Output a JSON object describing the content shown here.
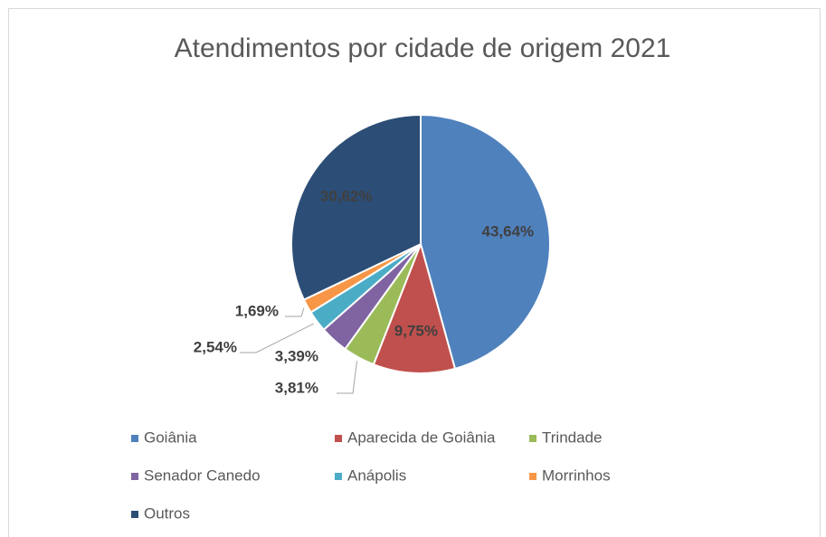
{
  "chart_data": {
    "type": "pie",
    "title": "Atendimentos por cidade de origem 2021",
    "categories": [
      "Goiânia",
      "Aparecida de Goiânia",
      "Trindade",
      "Senador Canedo",
      "Anápolis",
      "Morrinhos",
      "Outros"
    ],
    "values": [
      43.64,
      9.75,
      3.81,
      3.39,
      2.54,
      1.69,
      30.62
    ],
    "value_labels": [
      "43,64%",
      "9,75%",
      "3,81%",
      "3,39%",
      "2,54%",
      "1,69%",
      "30,62%"
    ],
    "colors": [
      "#4f81bd",
      "#c0504d",
      "#9bbb59",
      "#8064a2",
      "#4bacc6",
      "#f79646",
      "#2c4d75"
    ],
    "legend": "bottom"
  }
}
